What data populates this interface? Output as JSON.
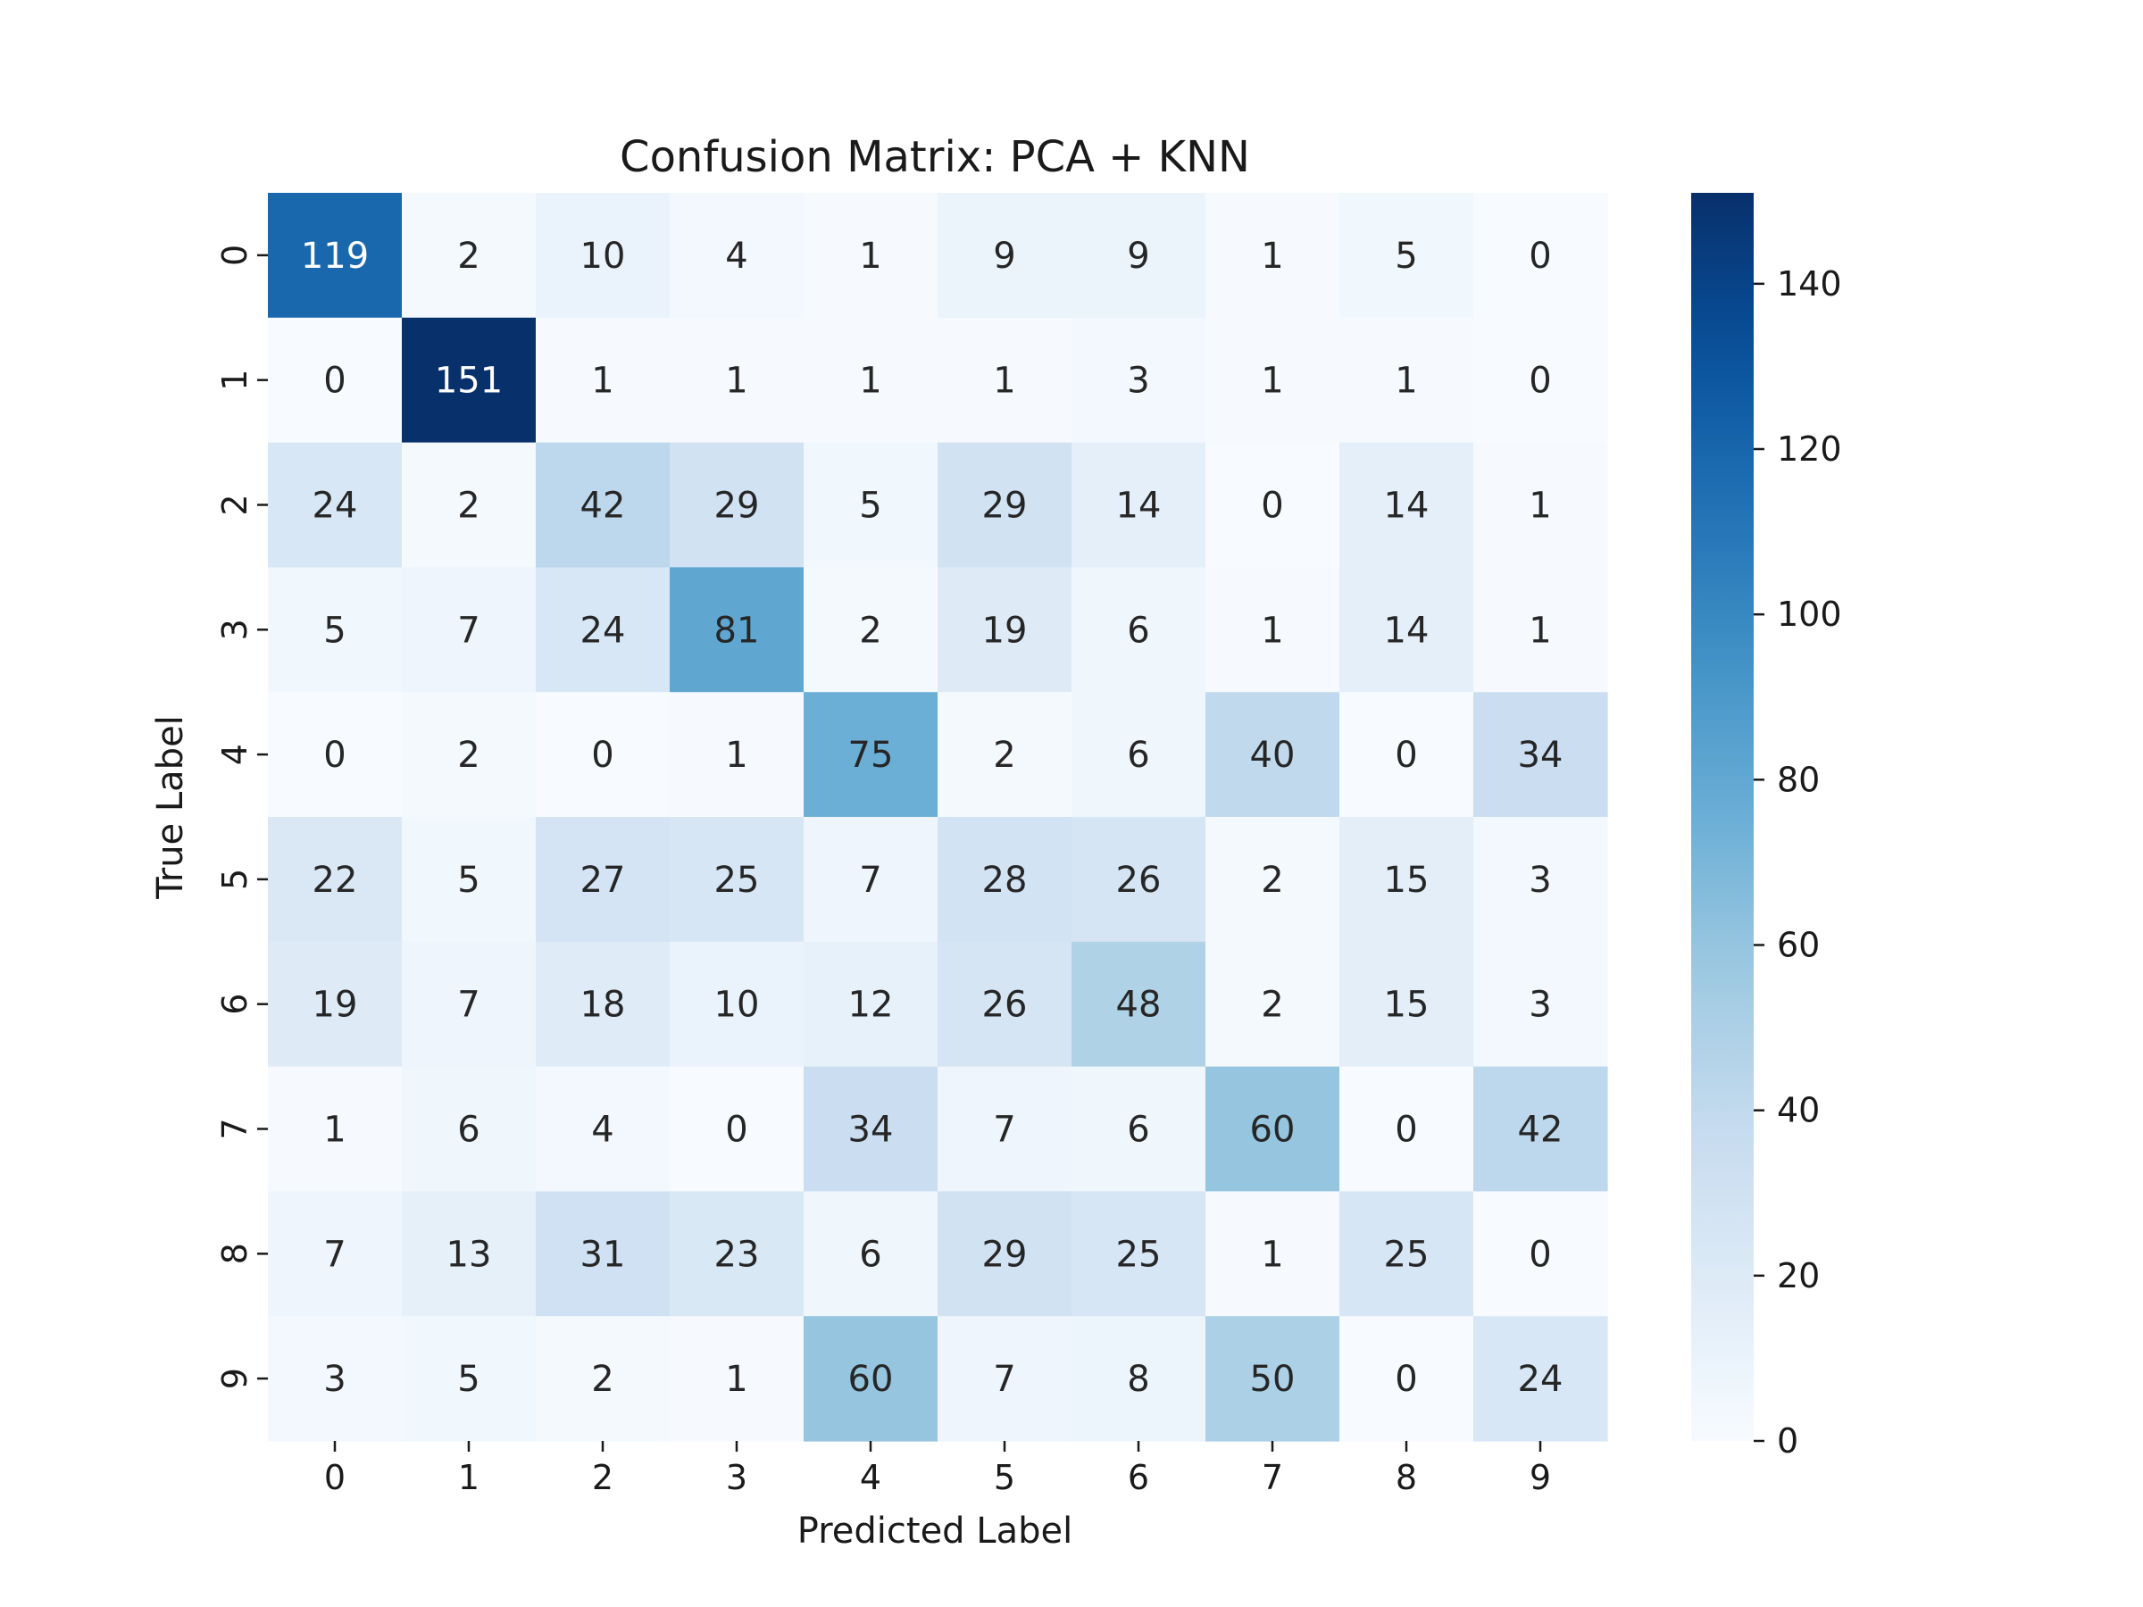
{
  "chart_data": {
    "type": "heatmap",
    "title": "Confusion Matrix: PCA + KNN",
    "xlabel": "Predicted Label",
    "ylabel": "True Label",
    "x_categories": [
      "0",
      "1",
      "2",
      "3",
      "4",
      "5",
      "6",
      "7",
      "8",
      "9"
    ],
    "y_categories": [
      "0",
      "1",
      "2",
      "3",
      "4",
      "5",
      "6",
      "7",
      "8",
      "9"
    ],
    "matrix": [
      [
        119,
        2,
        10,
        4,
        1,
        9,
        9,
        1,
        5,
        0
      ],
      [
        0,
        151,
        1,
        1,
        1,
        1,
        3,
        1,
        1,
        0
      ],
      [
        24,
        2,
        42,
        29,
        5,
        29,
        14,
        0,
        14,
        1
      ],
      [
        5,
        7,
        24,
        81,
        2,
        19,
        6,
        1,
        14,
        1
      ],
      [
        0,
        2,
        0,
        1,
        75,
        2,
        6,
        40,
        0,
        34
      ],
      [
        22,
        5,
        27,
        25,
        7,
        28,
        26,
        2,
        15,
        3
      ],
      [
        19,
        7,
        18,
        10,
        12,
        26,
        48,
        2,
        15,
        3
      ],
      [
        1,
        6,
        4,
        0,
        34,
        7,
        6,
        60,
        0,
        42
      ],
      [
        7,
        13,
        31,
        23,
        6,
        29,
        25,
        1,
        25,
        0
      ],
      [
        3,
        5,
        2,
        1,
        60,
        7,
        8,
        50,
        0,
        24
      ]
    ],
    "colormap": "Blues",
    "vmin": 0,
    "vmax": 151,
    "colorbar_ticks": [
      0,
      20,
      40,
      60,
      80,
      100,
      120,
      140
    ],
    "annotate": true
  }
}
